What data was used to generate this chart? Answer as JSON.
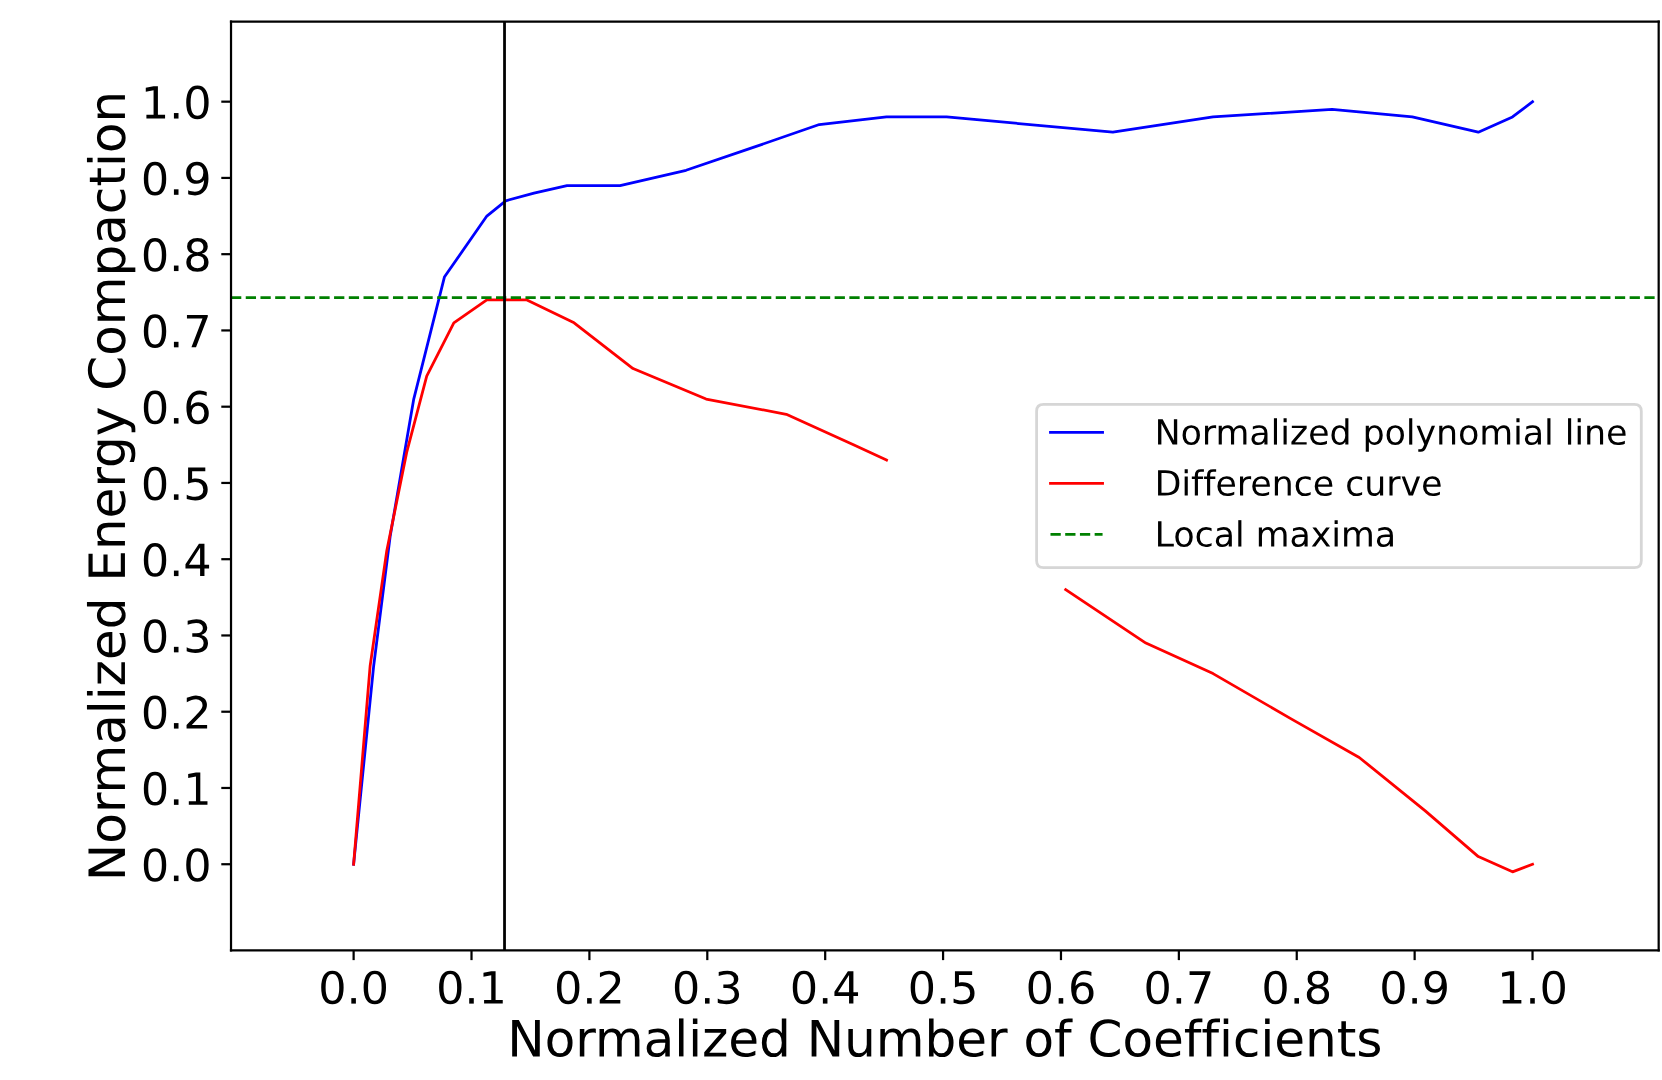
{
  "chart_data": {
    "type": "line",
    "xlabel": "Normalized Number of Coefficients",
    "ylabel": "Normalized Energy Compaction",
    "xlim": [
      -0.104,
      1.107
    ],
    "ylim": [
      -0.113,
      1.105
    ],
    "xticks": [
      {
        "value": 0,
        "label": "0.0"
      },
      0.1,
      0.2,
      0.3,
      0.4,
      0.5,
      0.6,
      0.7,
      0.8,
      0.9,
      {
        "value": 1,
        "label": "1.0"
      }
    ],
    "yticks": [
      {
        "value": 0,
        "label": "0.0"
      },
      0.1,
      0.2,
      0.3,
      0.4,
      0.5,
      0.6,
      0.7,
      0.8,
      0.9,
      {
        "value": 1,
        "label": "1.0"
      }
    ],
    "grid": false,
    "legend": "right",
    "line_style": "solid",
    "marker": "none",
    "series": [
      {
        "name": "Normalized polynomial line",
        "color": "#0000ff",
        "x": [
          0,
          0.017,
          0.031,
          0.051,
          0.077,
          0.113,
          0.129,
          0.153,
          0.181,
          0.226,
          0.282,
          0.339,
          0.395,
          0.452,
          0.503,
          0.644,
          0.729,
          0.83,
          0.898,
          0.954,
          0.983,
          1.0
        ],
        "values": [
          0,
          0.26,
          0.43,
          0.61,
          0.77,
          0.85,
          0.87,
          0.88,
          0.89,
          0.89,
          0.91,
          0.94,
          0.97,
          0.98,
          0.98,
          0.96,
          0.98,
          0.99,
          0.98,
          0.96,
          0.98,
          1.0
        ]
      },
      {
        "name": "Difference curve",
        "color": "#ff0000",
        "x": [
          0,
          0.014,
          0.028,
          0.045,
          0.062,
          0.085,
          0.113,
          0.129,
          0.147,
          0.187,
          0.237,
          0.299,
          0.367,
          0.424,
          0.452,
          0.53,
          0.604,
          0.672,
          0.729,
          0.796,
          0.853,
          0.909,
          0.954,
          0.983,
          1.0
        ],
        "values": [
          0,
          0.26,
          0.41,
          0.54,
          0.64,
          0.71,
          0.74,
          0.74,
          0.74,
          0.71,
          0.65,
          0.61,
          0.59,
          0.55,
          0.53,
          null,
          0.36,
          0.29,
          0.25,
          0.19,
          0.14,
          0.07,
          0.01,
          -0.01,
          0.0
        ]
      }
    ],
    "ref_lines": [
      {
        "axis": "y",
        "value": 0.743,
        "label": "Local maxima",
        "color": "#008000",
        "line_style": "dashed"
      },
      {
        "axis": "x",
        "value": 0.128,
        "color": "#000000",
        "line_style": "solid"
      }
    ]
  }
}
